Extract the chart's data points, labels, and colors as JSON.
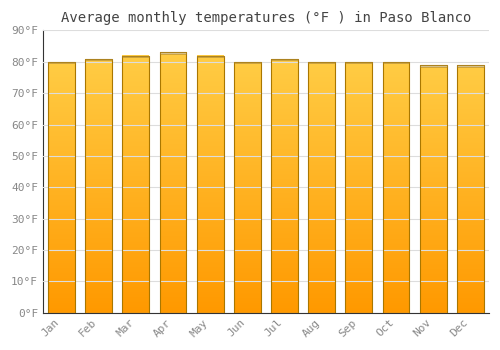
{
  "title": "Average monthly temperatures (°F ) in Paso Blanco",
  "months": [
    "Jan",
    "Feb",
    "Mar",
    "Apr",
    "May",
    "Jun",
    "Jul",
    "Aug",
    "Sep",
    "Oct",
    "Nov",
    "Dec"
  ],
  "values": [
    80,
    81,
    82,
    83,
    82,
    80,
    81,
    80,
    80,
    80,
    79,
    79
  ],
  "bar_color_top": "#FFBB33",
  "bar_color_bottom": "#FF9900",
  "bar_edge_color": "#AA7700",
  "bar_top_cap_color": "#BBBBBB",
  "background_color": "#FFFFFF",
  "plot_bg_color": "#FFFFFF",
  "grid_color": "#DDDDDD",
  "ylim": [
    0,
    90
  ],
  "yticks": [
    0,
    10,
    20,
    30,
    40,
    50,
    60,
    70,
    80,
    90
  ],
  "ytick_labels": [
    "0°F",
    "10°F",
    "20°F",
    "30°F",
    "40°F",
    "50°F",
    "60°F",
    "70°F",
    "80°F",
    "90°F"
  ],
  "title_fontsize": 10,
  "tick_fontsize": 8,
  "title_color": "#444444",
  "tick_color": "#888888",
  "bar_width": 0.72
}
